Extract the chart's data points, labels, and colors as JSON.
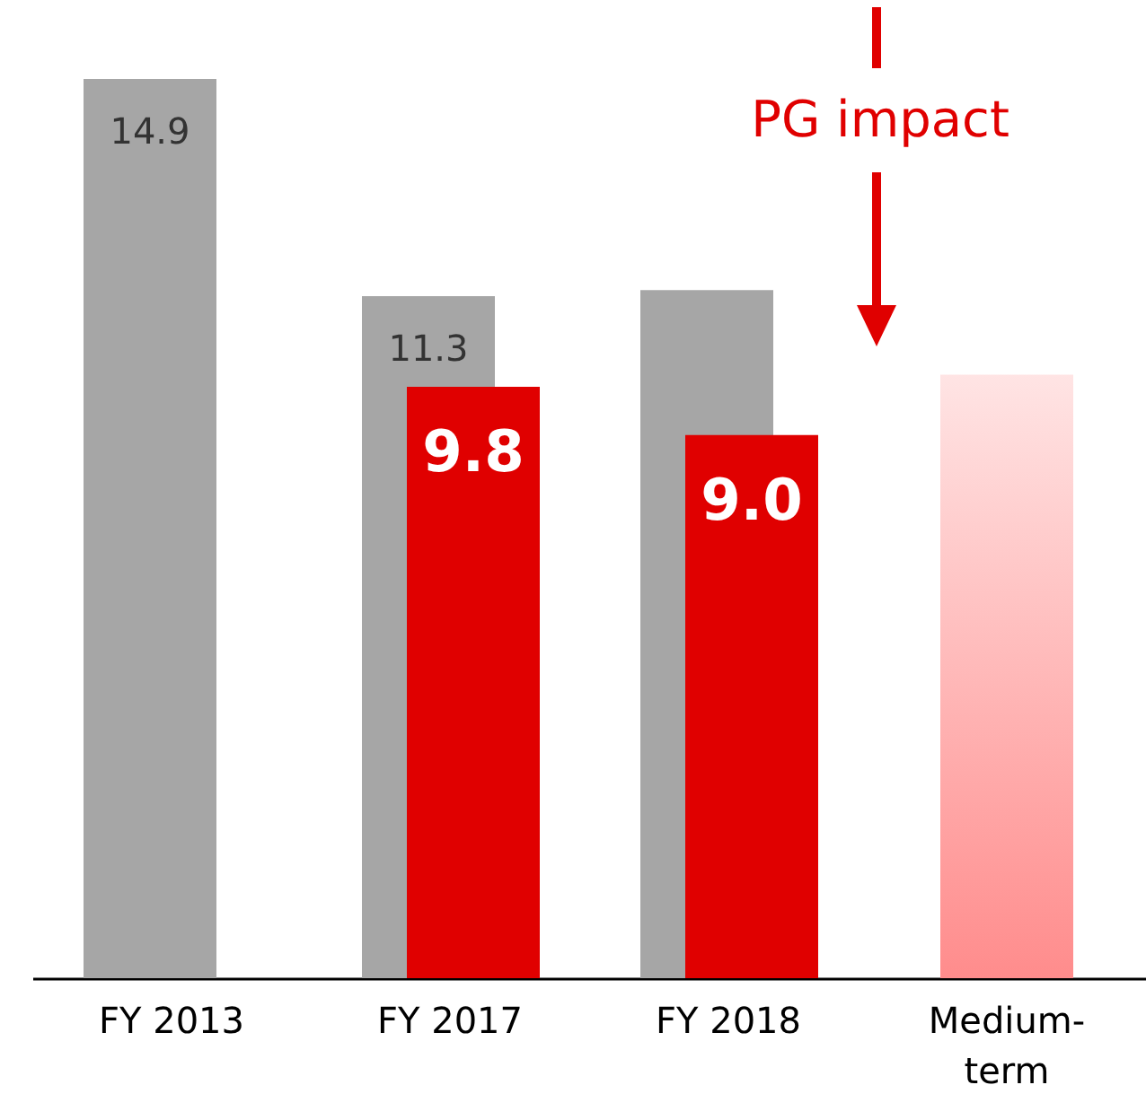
{
  "chart_data": {
    "type": "bar",
    "categories": [
      "FY 2013",
      "FY 2017",
      "FY 2018",
      "Medium-term"
    ],
    "series": [
      {
        "color": "#a6a6a6",
        "values": [
          14.9,
          11.3,
          11.4,
          null
        ],
        "value_labels": [
          "14.9",
          "11.3",
          null,
          null
        ]
      },
      {
        "color": "#e00000",
        "values": [
          null,
          9.8,
          9.0,
          null
        ],
        "value_labels": [
          null,
          "9.8",
          "9.0",
          null
        ]
      },
      {
        "color": "#ff8c8c",
        "values": [
          null,
          null,
          null,
          10.0
        ],
        "value_labels": [
          null,
          null,
          null,
          null
        ]
      }
    ],
    "annotations": [
      "PG impact"
    ],
    "grid": false
  }
}
